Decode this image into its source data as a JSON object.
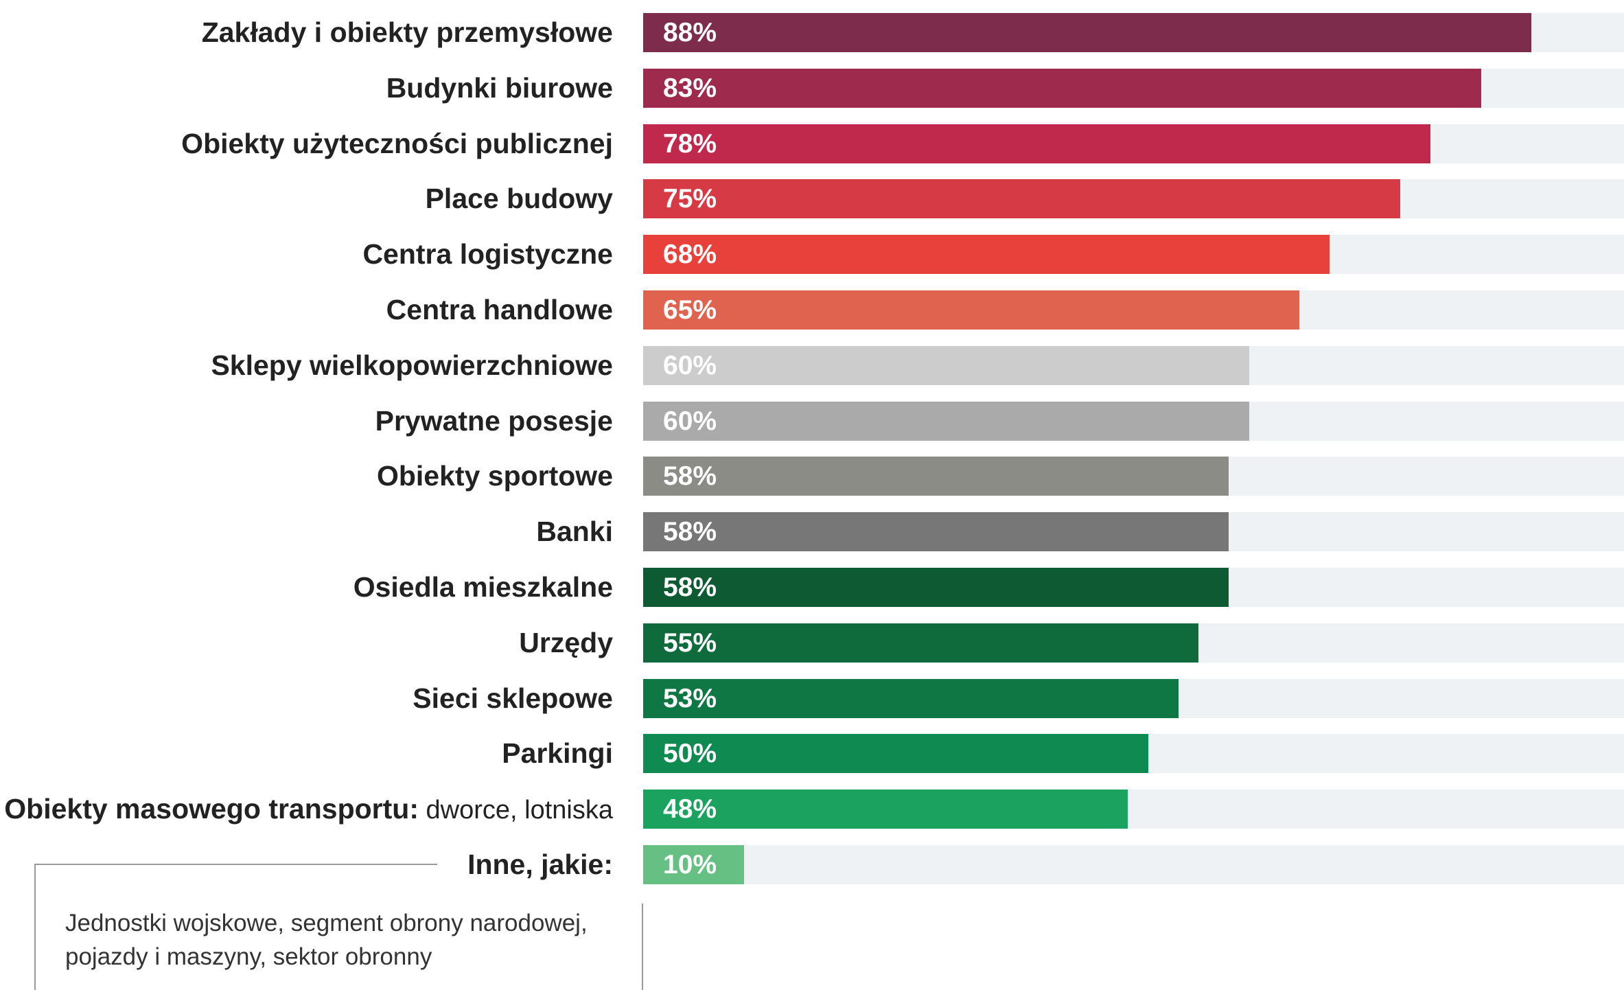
{
  "chart_data": {
    "type": "bar",
    "orientation": "horizontal",
    "xlim": [
      0,
      100
    ],
    "categories": [
      {
        "label": "Zakłady i obiekty przemysłowe",
        "note": "",
        "value": 88,
        "value_label": "88%",
        "color": "#7d2c4b"
      },
      {
        "label": "Budynki biurowe",
        "note": "",
        "value": 83,
        "value_label": "83%",
        "color": "#9e2a4e"
      },
      {
        "label": "Obiekty użyteczności publicznej",
        "note": "",
        "value": 78,
        "value_label": "78%",
        "color": "#c0294c"
      },
      {
        "label": "Place budowy",
        "note": "",
        "value": 75,
        "value_label": "75%",
        "color": "#d63a45"
      },
      {
        "label": "Centra logistyczne",
        "note": "",
        "value": 68,
        "value_label": "68%",
        "color": "#e8413b"
      },
      {
        "label": "Centra handlowe",
        "note": "",
        "value": 65,
        "value_label": "65%",
        "color": "#e06350"
      },
      {
        "label": "Sklepy wielkopowierzchniowe",
        "note": "",
        "value": 60,
        "value_label": "60%",
        "color": "#cccccc"
      },
      {
        "label": "Prywatne posesje",
        "note": "",
        "value": 60,
        "value_label": "60%",
        "color": "#aaaaaa"
      },
      {
        "label": "Obiekty sportowe",
        "note": "",
        "value": 58,
        "value_label": "58%",
        "color": "#8c8c86"
      },
      {
        "label": "Banki",
        "note": "",
        "value": 58,
        "value_label": "58%",
        "color": "#777777"
      },
      {
        "label": "Osiedla mieszkalne",
        "note": "",
        "value": 58,
        "value_label": "58%",
        "color": "#0d5a33"
      },
      {
        "label": "Urzędy",
        "note": "",
        "value": 55,
        "value_label": "55%",
        "color": "#0f6b3b"
      },
      {
        "label": "Sieci sklepowe",
        "note": "",
        "value": 53,
        "value_label": "53%",
        "color": "#0e7743"
      },
      {
        "label": "Parkingi",
        "note": "",
        "value": 50,
        "value_label": "50%",
        "color": "#0f8a50"
      },
      {
        "label": "Obiekty masowego transportu:",
        "note": " dworce, lotniska",
        "value": 48,
        "value_label": "48%",
        "color": "#1ba25f"
      },
      {
        "label": "Inne, jakie:",
        "note": "",
        "value": 10,
        "value_label": "10%",
        "color": "#66c084"
      }
    ],
    "track_color": "#eff2f5",
    "grid": false,
    "legend": "none"
  },
  "note_box": {
    "text": "Jednostki wojskowe, segment obrony narodowej, pojazdy i maszyny, sektor obronny"
  }
}
